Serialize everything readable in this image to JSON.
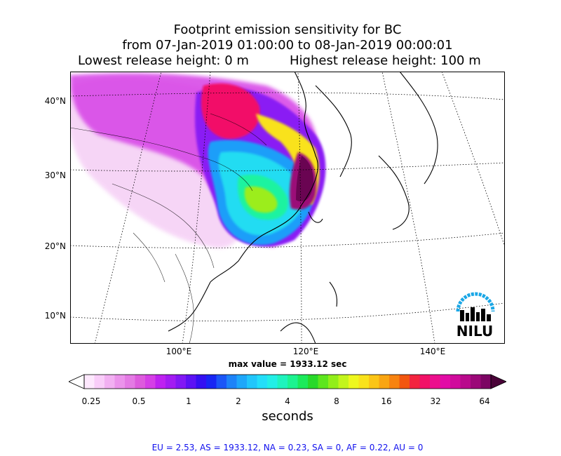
{
  "title": {
    "line1": "Footprint emission sensitivity for BC",
    "line2": "from 07-Jan-2019 01:00:00 to 08-Jan-2019 00:00:01",
    "lowest": "Lowest release height: 0 m",
    "highest": "Highest release height: 100 m"
  },
  "map": {
    "lat_labels": [
      "40°N",
      "30°N",
      "20°N",
      "10°N"
    ],
    "lon_labels": [
      "100°E",
      "120°E",
      "140°E"
    ],
    "logo_text": "NILU",
    "logo_color": "#1aa7e6"
  },
  "max_value": "max value = 1933.12 sec",
  "colorbar": {
    "ticks": [
      "0.25",
      "0.5",
      "1",
      "2",
      "4",
      "8",
      "16",
      "32",
      "64"
    ],
    "units": "seconds",
    "colors": [
      "#fde8fd",
      "#f9cdf9",
      "#f2b0f2",
      "#eb93eb",
      "#e47ae4",
      "#dd5bdd",
      "#d53fe6",
      "#be22f0",
      "#a31cf2",
      "#8218f4",
      "#5c12f4",
      "#3410f2",
      "#1826f4",
      "#1b56f7",
      "#1d83f8",
      "#1ea7fa",
      "#21c6fb",
      "#23def9",
      "#22efe6",
      "#1ff3bd",
      "#1cf390",
      "#1bea5b",
      "#28d92a",
      "#5de61e",
      "#92ee1a",
      "#c3f51c",
      "#eef71e",
      "#f9e21b",
      "#fbc516",
      "#f9a512",
      "#f78310",
      "#f2560f",
      "#f3243f",
      "#f21167",
      "#ec0f8d",
      "#e20ca6",
      "#d00b9c",
      "#b90a8c",
      "#9b0878",
      "#7c0563"
    ]
  },
  "summary": "EU = 2.53,  AS = 1933.12,  NA = 0.23,  SA = 0,  AF = 0.22,  AU = 0"
}
